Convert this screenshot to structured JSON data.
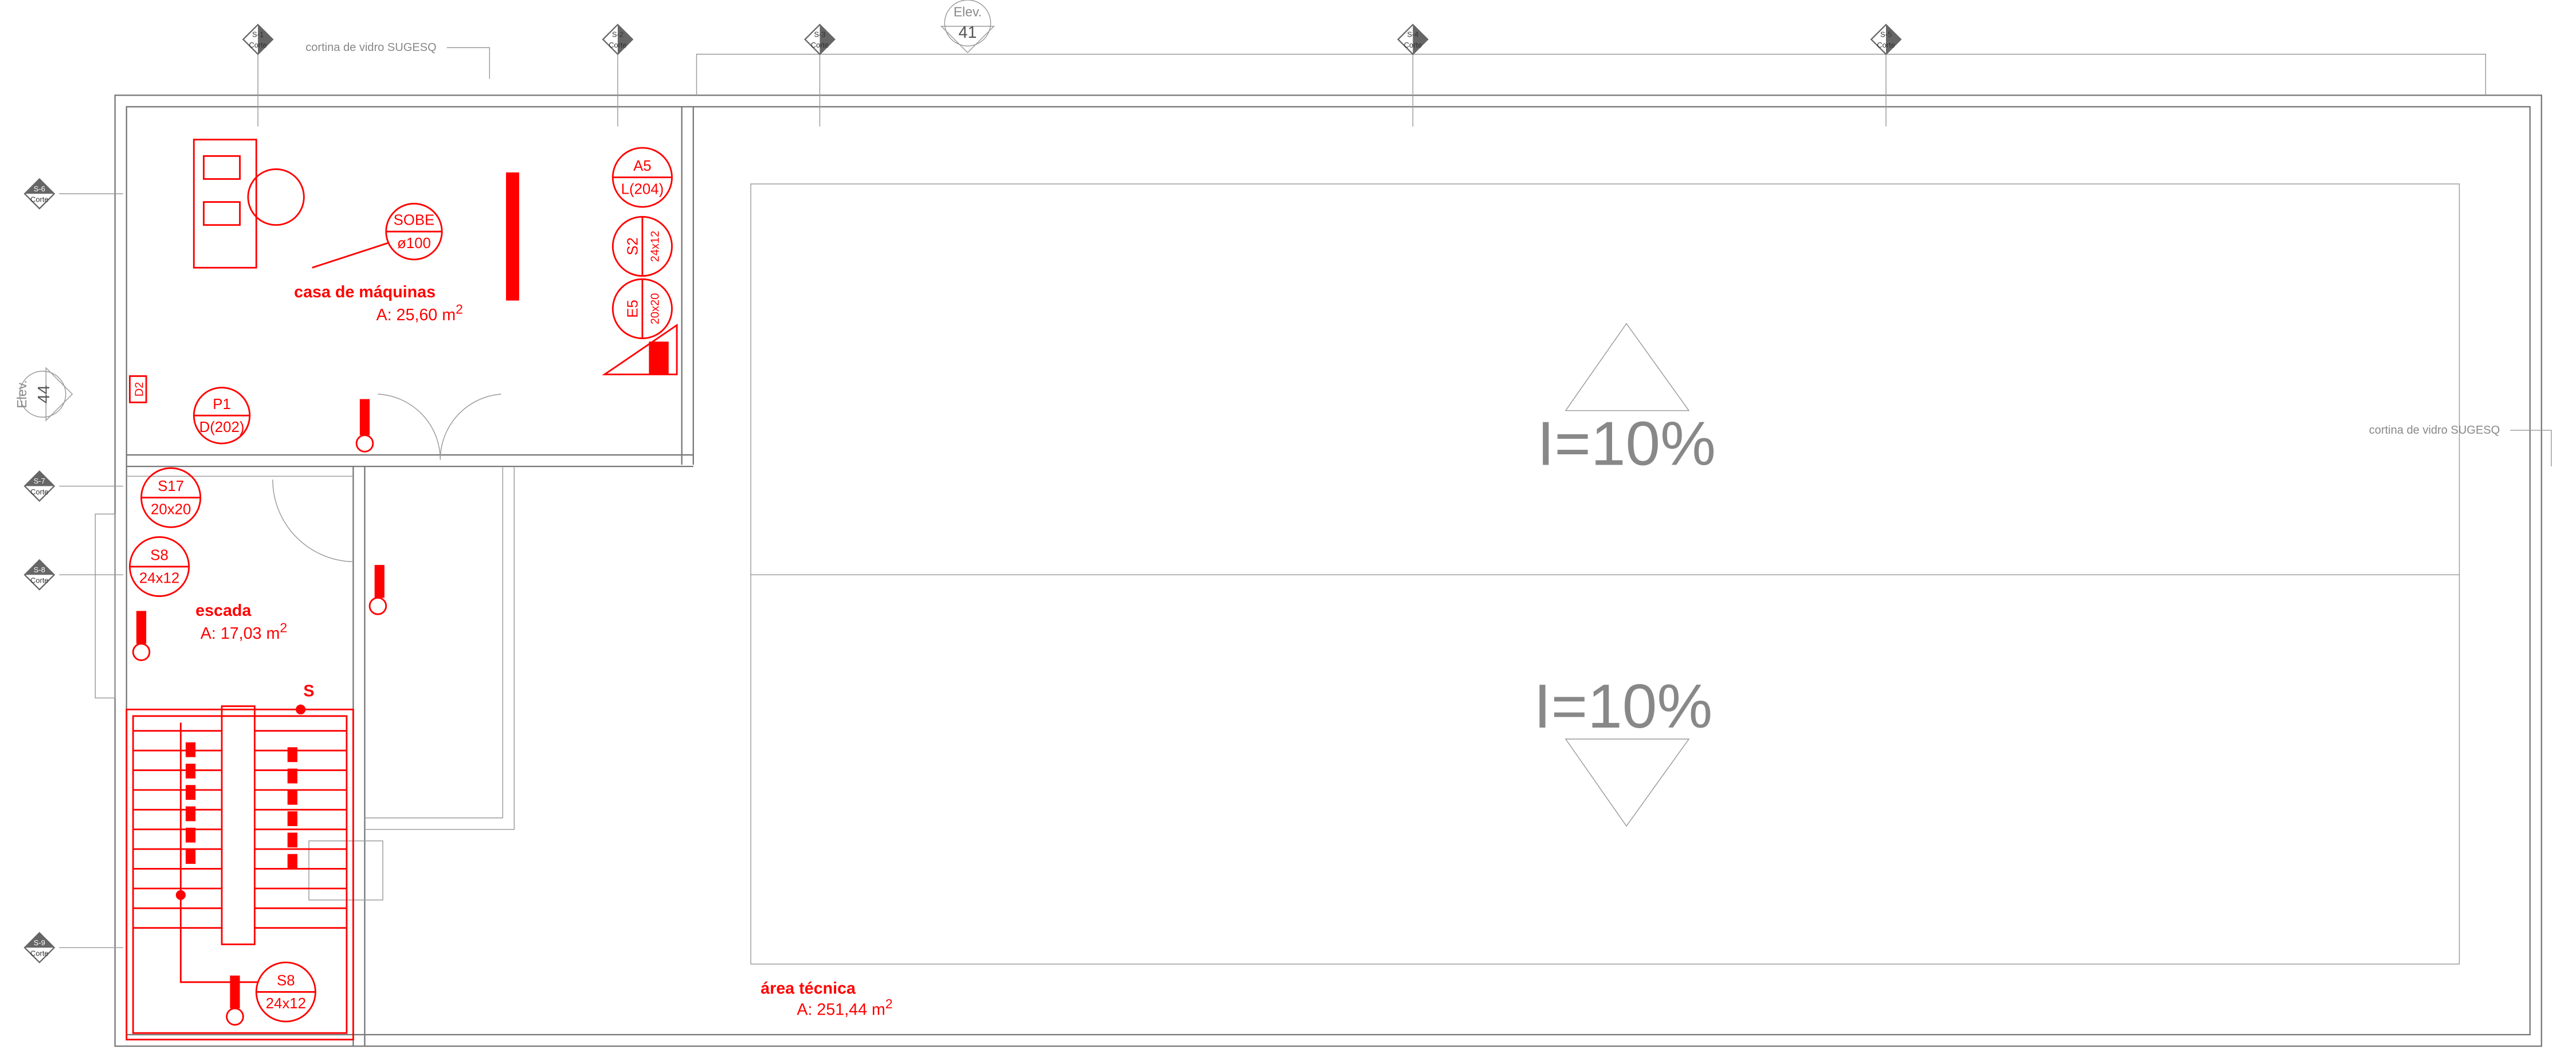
{
  "sections_top": [
    {
      "id": "S-1",
      "label": "Corte"
    },
    {
      "id": "S-2",
      "label": "Corte"
    },
    {
      "id": "S-3",
      "label": "Corte"
    },
    {
      "id": "S-4",
      "label": "Corte"
    },
    {
      "id": "S-5",
      "label": "Corte"
    }
  ],
  "sections_left": [
    {
      "id": "S-6",
      "label": "Corte"
    },
    {
      "id": "S-7",
      "label": "Corte"
    },
    {
      "id": "S-8",
      "label": "Corte"
    },
    {
      "id": "S-9",
      "label": "Corte"
    }
  ],
  "elevations": [
    {
      "label": "Elev.",
      "number": "41"
    },
    {
      "label": "Elev.",
      "number": "44"
    }
  ],
  "notes": [
    "cortina de vidro SUGESQ",
    "cortina de vidro SUGESQ"
  ],
  "rooms": [
    {
      "name": "casa de máquinas",
      "area": "A: 25,60 m",
      "area_sup": "2"
    },
    {
      "name": "escada",
      "area": "A: 17,03 m",
      "area_sup": "2"
    },
    {
      "name": "área técnica",
      "area": "A: 251,44 m",
      "area_sup": "2"
    }
  ],
  "tags": [
    {
      "top": "A5",
      "bottom": "L(204)"
    },
    {
      "top": "SOBE",
      "bottom": "ø100"
    },
    {
      "top": "S2",
      "bottom": "24x12"
    },
    {
      "top": "E5",
      "bottom": "20x20"
    },
    {
      "top": "P1",
      "bottom": "D(202)"
    },
    {
      "top": "S17",
      "bottom": "20x20"
    },
    {
      "top": "S8",
      "bottom": "24x12"
    },
    {
      "top": "S8",
      "bottom": "24x12"
    }
  ],
  "door_tag": "D2",
  "slopes": [
    "I=10%",
    "I=10%"
  ],
  "stair_marker": "S"
}
